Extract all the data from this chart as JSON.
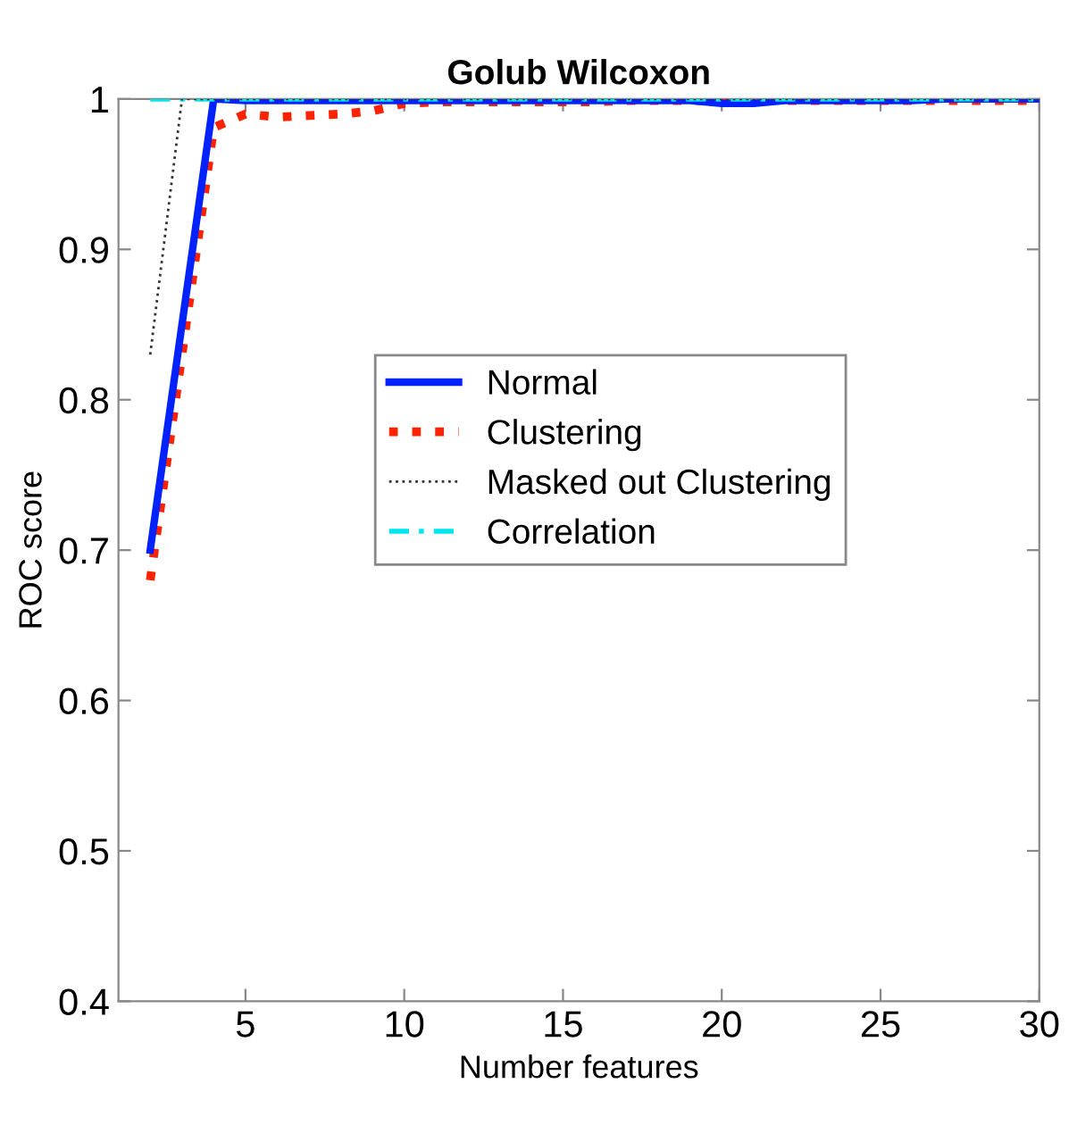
{
  "chart_data": {
    "type": "line",
    "title": "Golub Wilcoxon",
    "xlabel": "Number features",
    "ylabel": "ROC score",
    "x": [
      2,
      3,
      4,
      5,
      6,
      7,
      8,
      9,
      10,
      11,
      12,
      13,
      14,
      15,
      16,
      17,
      18,
      19,
      20,
      21,
      22,
      23,
      24,
      25,
      26,
      27,
      28,
      29,
      30
    ],
    "xlim": [
      1,
      30
    ],
    "xticks": [
      5,
      10,
      15,
      20,
      25,
      30
    ],
    "ylim": [
      0.4,
      1
    ],
    "yticks": [
      0.4,
      0.5,
      0.6,
      0.7,
      0.8,
      0.9,
      1
    ],
    "grid": false,
    "legend": "center left",
    "marker": "none",
    "series": [
      {
        "name": "Normal",
        "color": "#0022ff",
        "line_style": "solid",
        "values": [
          0.7,
          0.85,
          1,
          0.999,
          0.999,
          0.999,
          0.999,
          0.999,
          0.999,
          0.999,
          0.999,
          0.999,
          0.999,
          0.999,
          0.999,
          0.999,
          0.999,
          0.999,
          0.997,
          0.997,
          0.999,
          0.999,
          0.999,
          0.999,
          0.999,
          1,
          1,
          1,
          1
        ]
      },
      {
        "name": "Clustering",
        "color": "#ff2200",
        "line_style": "dotted",
        "values": [
          0.68,
          0.83,
          0.981,
          0.99,
          0.988,
          0.989,
          0.99,
          0.992,
          0.997,
          0.998,
          0.998,
          0.998,
          0.998,
          0.998,
          0.998,
          0.999,
          0.999,
          0.999,
          0.999,
          0.999,
          0.999,
          0.999,
          0.999,
          0.999,
          0.999,
          0.999,
          0.999,
          0.999,
          0.999
        ]
      },
      {
        "name": "Masked out Clustering",
        "color": "#333333",
        "line_style": "dotted",
        "values": [
          0.83,
          1,
          1,
          1,
          1,
          1,
          1,
          1,
          1,
          1,
          1,
          1,
          1,
          1,
          1,
          1,
          1,
          1,
          1,
          1,
          1,
          1,
          1,
          1,
          1,
          1,
          1,
          1,
          1
        ]
      },
      {
        "name": "Correlation",
        "color": "#00e5ee",
        "line_style": "dashed",
        "values": [
          1,
          1,
          1,
          1,
          1,
          1,
          1,
          1,
          1,
          1,
          1,
          1,
          1,
          1,
          1,
          1,
          1,
          1,
          1,
          1,
          1,
          1,
          1,
          1,
          1,
          1,
          1,
          1,
          1
        ]
      }
    ]
  }
}
